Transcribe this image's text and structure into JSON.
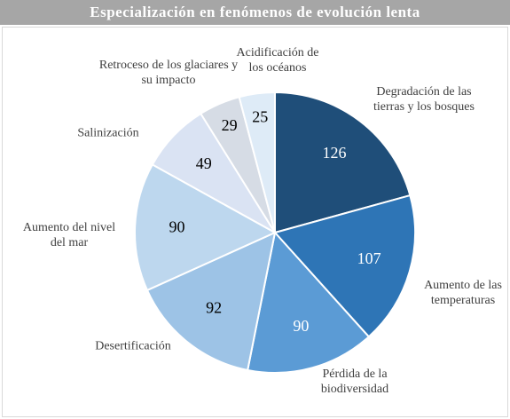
{
  "chart_data": {
    "type": "pie",
    "title": "Especialización en fenómenos de evolución lenta",
    "categories": [
      "Degradación de las tierras y los bosques",
      "Aumento de las temperaturas",
      "Pérdida de la biodiversidad",
      "Desertificación",
      "Aumento del nivel del mar",
      "Salinización",
      "Retroceso de los glaciares  y su impacto",
      "Acidificación de los océanos"
    ],
    "values": [
      126,
      107,
      90,
      92,
      90,
      49,
      29,
      25
    ],
    "colors": [
      "#1f4e79",
      "#2e75b6",
      "#5b9bd5",
      "#9dc3e6",
      "#bdd7ee",
      "#dae3f3",
      "#d6dce5",
      "#deebf7"
    ]
  }
}
